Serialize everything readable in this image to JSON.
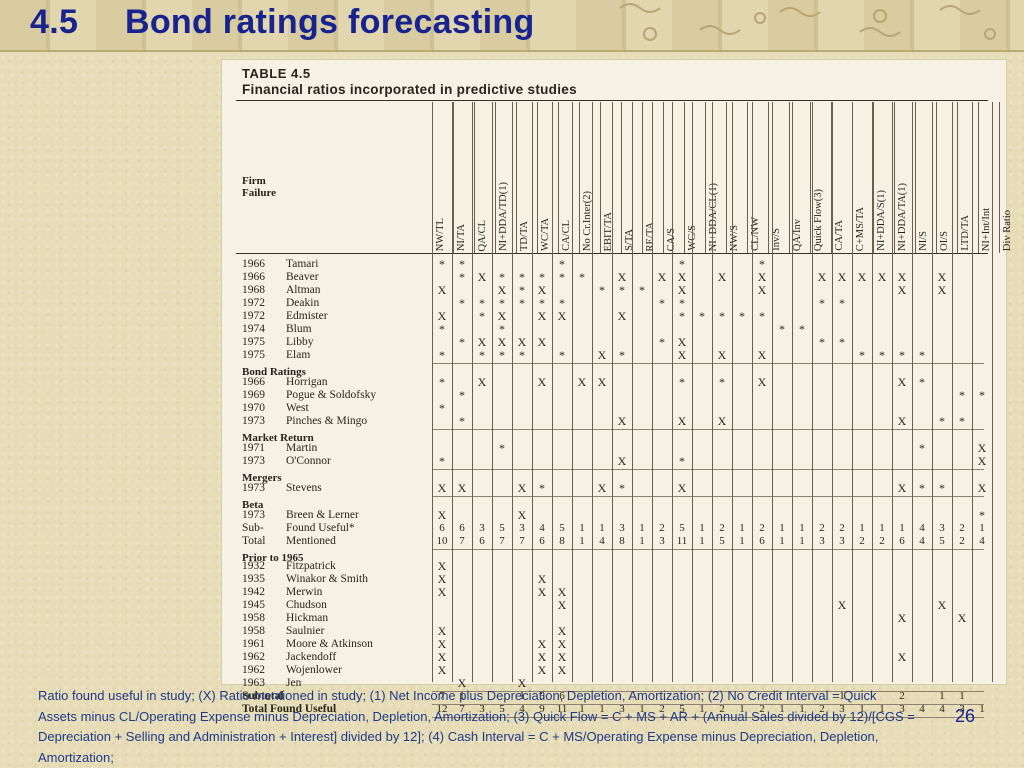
{
  "slide": {
    "number": "4.5",
    "title": "Bond ratings forecasting",
    "page": "26",
    "footnote": "Ratio found useful in study; (X) Ratio mentioned in study; (1) Net Income plus Depreciation, Depletion, Amortization; (2) No Credit Interval = Quick Assets minus CL/Operating Expense minus Depreciation, Depletion, Amortization; (3) Quick Flow = C + MS + AR + (Annual Sales divided by 12)/[CGS = Depreciation + Selling and Administration + Interest] divided by 12]; (4) Cash Interval = C + MS/Operating Expense minus Depreciation, Depletion, Amortization;"
  },
  "table": {
    "caption": "TABLE 4.5",
    "subtitle": "Financial ratios incorporated in predictive studies",
    "firm_header": "Firm\nFailure",
    "columns": [
      "NW/TL",
      "NI/TA",
      "QA/CL",
      "NI+DDA/TD(1)",
      "TD/TA",
      "WC/TA",
      "CA/CL",
      "No Cr.Inter(2)",
      "EBIT/TA",
      "S/TA",
      "RE/TA",
      "CA/S",
      "WC/S",
      "NI+DDA/CL(1)",
      "NW/S",
      "CL/NW",
      "Inv/S",
      "QA/Inv",
      "Quick Flow(3)",
      "CA/TA",
      "C+MS/TA",
      "NI+DDA/S(1)",
      "NI+DDA/TA(1)",
      "NI/S",
      "OI/S",
      "LTD/TA",
      "NI+Int/Int",
      "Div Ratio"
    ],
    "rows": [
      {
        "year": "1966",
        "name": "Tamari",
        "marks": [
          "*",
          "*",
          "",
          "",
          "",
          "",
          "*",
          "",
          "",
          "",
          "",
          "",
          "*",
          "",
          "",
          "",
          "*",
          "",
          "",
          "",
          "",
          "",
          "",
          "",
          "",
          "",
          "",
          ""
        ]
      },
      {
        "year": "1966",
        "name": "Beaver",
        "marks": [
          "",
          "*",
          "X",
          "*",
          "*",
          "*",
          "*",
          "*",
          "",
          "X",
          "",
          "X",
          "X",
          "",
          "X",
          "",
          "X",
          "",
          "",
          "X",
          "X",
          "X",
          "X",
          "X",
          "",
          "X",
          "",
          ""
        ]
      },
      {
        "year": "1968",
        "name": "Altman",
        "marks": [
          "X",
          "",
          "",
          "X",
          "*",
          "X",
          "",
          "",
          "*",
          "*",
          "*",
          "",
          "X",
          "",
          "",
          "",
          "X",
          "",
          "",
          "",
          "",
          "",
          "",
          "X",
          "",
          "X",
          "",
          ""
        ]
      },
      {
        "year": "1972",
        "name": "Deakin",
        "marks": [
          "",
          "*",
          "*",
          "*",
          "*",
          "*",
          "*",
          "",
          "",
          "",
          "",
          "*",
          "*",
          "",
          "",
          "",
          "",
          "",
          "",
          "*",
          "*",
          "",
          "",
          "",
          "",
          "",
          "",
          ""
        ]
      },
      {
        "year": "1972",
        "name": "Edmister",
        "marks": [
          "X",
          "",
          "*",
          "X",
          "",
          "X",
          "X",
          "",
          "",
          "X",
          "",
          "",
          "*",
          "*",
          "*",
          "*",
          "*",
          "",
          "",
          "",
          "",
          "",
          "",
          "",
          "",
          "",
          "",
          ""
        ]
      },
      {
        "year": "1974",
        "name": "Blum",
        "marks": [
          "*",
          "",
          "",
          "*",
          "",
          "",
          "",
          "",
          "",
          "",
          "",
          "",
          "",
          "",
          "",
          "",
          "",
          "*",
          "*",
          "",
          "",
          "",
          "",
          "",
          "",
          "",
          "",
          ""
        ]
      },
      {
        "year": "1975",
        "name": "Libby",
        "marks": [
          "",
          "*",
          "X",
          "X",
          "X",
          "X",
          "",
          "",
          "",
          "",
          "",
          "*",
          "X",
          "",
          "",
          "",
          "",
          "",
          "",
          "*",
          "*",
          "",
          "",
          "",
          "",
          "",
          "",
          ""
        ]
      },
      {
        "year": "1975",
        "name": "Elam",
        "marks": [
          "*",
          "",
          "*",
          "*",
          "*",
          "",
          "*",
          "",
          "X",
          "*",
          "",
          "",
          "X",
          "",
          "X",
          "",
          "X",
          "",
          "",
          "",
          "",
          "*",
          "*",
          "*",
          "*",
          "",
          "",
          ""
        ]
      }
    ],
    "bond_section": "Bond Ratings",
    "bond_rows": [
      {
        "year": "1966",
        "name": "Horrigan",
        "marks": [
          "*",
          "",
          "X",
          "",
          "",
          "X",
          "",
          "X",
          "X",
          "",
          "",
          "",
          "*",
          "",
          "*",
          "",
          "X",
          "",
          "",
          "",
          "",
          "",
          "",
          "X",
          "*",
          "",
          "",
          ""
        ]
      },
      {
        "year": "1969",
        "name": "Pogue & Soldofsky",
        "marks": [
          "",
          "*",
          "",
          "",
          "",
          "",
          "",
          "",
          "",
          "",
          "",
          "",
          "",
          "",
          "",
          "",
          "",
          "",
          "",
          "",
          "",
          "",
          "",
          "",
          "",
          "",
          "*",
          "*"
        ]
      },
      {
        "year": "1970",
        "name": "West",
        "marks": [
          "*",
          "",
          "",
          "",
          "",
          "",
          "",
          "",
          "",
          "",
          "",
          "",
          "",
          "",
          "",
          "",
          "",
          "",
          "",
          "",
          "",
          "",
          "",
          "",
          "",
          "",
          "",
          ""
        ]
      },
      {
        "year": "1973",
        "name": "Pinches & Mingo",
        "marks": [
          "",
          "*",
          "",
          "",
          "",
          "",
          "",
          "",
          "",
          "X",
          "",
          "",
          "X",
          "",
          "X",
          "",
          "",
          "",
          "",
          "",
          "",
          "",
          "",
          "X",
          "",
          "*",
          "*",
          ""
        ]
      }
    ],
    "market_section": "Market Return",
    "market_rows": [
      {
        "year": "1971",
        "name": "Martin",
        "marks": [
          "",
          "",
          "",
          "*",
          "",
          "",
          "",
          "",
          "",
          "",
          "",
          "",
          "",
          "",
          "",
          "",
          "",
          "",
          "",
          "",
          "",
          "",
          "",
          "",
          "*",
          "",
          "",
          "X"
        ]
      },
      {
        "year": "1973",
        "name": "O'Connor",
        "marks": [
          "*",
          "",
          "",
          "",
          "",
          "",
          "",
          "",
          "",
          "X",
          "",
          "",
          "*",
          "",
          "",
          "",
          "",
          "",
          "",
          "",
          "",
          "",
          "",
          "",
          "",
          "",
          "",
          "X"
        ]
      }
    ],
    "mergers_section": "Mergers",
    "mergers_rows": [
      {
        "year": "1973",
        "name": "Stevens",
        "marks": [
          "X",
          "X",
          "",
          "",
          "X",
          "*",
          "",
          "",
          "X",
          "*",
          "",
          "",
          "X",
          "",
          "",
          "",
          "",
          "",
          "",
          "",
          "",
          "",
          "",
          "X",
          "*",
          "*",
          "",
          "X"
        ]
      }
    ],
    "beta_section": "Beta",
    "beta_rows": [
      {
        "year": "1973",
        "name": "Breen & Lerner",
        "marks": [
          "X",
          "",
          "",
          "",
          "X",
          "",
          "",
          "",
          "",
          "",
          "",
          "",
          "",
          "",
          "",
          "",
          "",
          "",
          "",
          "",
          "",
          "",
          "",
          "",
          "",
          "",
          "",
          "*"
        ]
      }
    ],
    "subtotals": [
      {
        "label1": "Sub-",
        "label2": "Found Useful*",
        "values": [
          "6",
          "6",
          "3",
          "5",
          "3",
          "4",
          "5",
          "1",
          "1",
          "3",
          "1",
          "2",
          "5",
          "1",
          "2",
          "1",
          "2",
          "1",
          "1",
          "2",
          "2",
          "1",
          "1",
          "1",
          "4",
          "3",
          "2",
          "1"
        ]
      },
      {
        "label1": "Total",
        "label2": "Mentioned",
        "values": [
          "10",
          "7",
          "6",
          "7",
          "7",
          "6",
          "8",
          "1",
          "4",
          "8",
          "1",
          "3",
          "11",
          "1",
          "5",
          "1",
          "6",
          "1",
          "1",
          "3",
          "3",
          "2",
          "2",
          "6",
          "4",
          "5",
          "2",
          "4"
        ]
      }
    ],
    "prior_section": "Prior to 1965",
    "prior_rows": [
      {
        "year": "1932",
        "name": "Fitzpatrick",
        "marks": [
          "X",
          "",
          "",
          "",
          "",
          "",
          "",
          "",
          "",
          "",
          "",
          "",
          "",
          "",
          "",
          "",
          "",
          "",
          "",
          "",
          "",
          "",
          "",
          "",
          "",
          "",
          "",
          ""
        ]
      },
      {
        "year": "1935",
        "name": "Winakor & Smith",
        "marks": [
          "X",
          "",
          "",
          "",
          "",
          "X",
          "",
          "",
          "",
          "",
          "",
          "",
          "",
          "",
          "",
          "",
          "",
          "",
          "",
          "",
          "",
          "",
          "",
          "",
          "",
          "",
          "",
          ""
        ]
      },
      {
        "year": "1942",
        "name": "Merwin",
        "marks": [
          "X",
          "",
          "",
          "",
          "",
          "X",
          "X",
          "",
          "",
          "",
          "",
          "",
          "",
          "",
          "",
          "",
          "",
          "",
          "",
          "",
          "",
          "",
          "",
          "",
          "",
          "",
          "",
          ""
        ]
      },
      {
        "year": "1945",
        "name": "Chudson",
        "marks": [
          "",
          "",
          "",
          "",
          "",
          "",
          "X",
          "",
          "",
          "",
          "",
          "",
          "",
          "",
          "",
          "",
          "",
          "",
          "",
          "",
          "X",
          "",
          "",
          "",
          "",
          "X",
          "",
          ""
        ]
      },
      {
        "year": "1958",
        "name": "Hickman",
        "marks": [
          "",
          "",
          "",
          "",
          "",
          "",
          "",
          "",
          "",
          "",
          "",
          "",
          "",
          "",
          "",
          "",
          "",
          "",
          "",
          "",
          "",
          "",
          "",
          "X",
          "",
          "",
          "X",
          ""
        ]
      },
      {
        "year": "1958",
        "name": "Saulnier",
        "marks": [
          "X",
          "",
          "",
          "",
          "",
          "",
          "X",
          "",
          "",
          "",
          "",
          "",
          "",
          "",
          "",
          "",
          "",
          "",
          "",
          "",
          "",
          "",
          "",
          "",
          "",
          "",
          "",
          ""
        ]
      },
      {
        "year": "1961",
        "name": "Moore & Atkinson",
        "marks": [
          "X",
          "",
          "",
          "",
          "",
          "X",
          "X",
          "",
          "",
          "",
          "",
          "",
          "",
          "",
          "",
          "",
          "",
          "",
          "",
          "",
          "",
          "",
          "",
          "",
          "",
          "",
          "",
          ""
        ]
      },
      {
        "year": "1962",
        "name": "Jackendoff",
        "marks": [
          "X",
          "",
          "",
          "",
          "",
          "X",
          "X",
          "",
          "",
          "",
          "",
          "",
          "",
          "",
          "",
          "",
          "",
          "",
          "",
          "",
          "",
          "",
          "",
          "X",
          "",
          "",
          "",
          ""
        ]
      },
      {
        "year": "1962",
        "name": "Wojenlower",
        "marks": [
          "X",
          "",
          "",
          "",
          "",
          "X",
          "X",
          "",
          "",
          "",
          "",
          "",
          "",
          "",
          "",
          "",
          "",
          "",
          "",
          "",
          "",
          "",
          "",
          "",
          "",
          "",
          "",
          ""
        ]
      },
      {
        "year": "1963",
        "name": "Jen",
        "marks": [
          "",
          "X",
          "",
          "",
          "X",
          "",
          "",
          "",
          "",
          "",
          "",
          "",
          "",
          "",
          "",
          "",
          "",
          "",
          "",
          "",
          "",
          "",
          "",
          "",
          "",
          "",
          "",
          ""
        ]
      }
    ],
    "totals": [
      {
        "label": "Subtotal",
        "values": [
          "7",
          "1",
          "",
          "",
          "1",
          "5",
          "6",
          "",
          "",
          "",
          "",
          "",
          "",
          "",
          "",
          "",
          "",
          "",
          "",
          "",
          "1",
          "",
          "",
          "2",
          "",
          "1",
          "1",
          ""
        ]
      },
      {
        "label": "Total Found Useful",
        "values": [
          "12",
          "7",
          "3",
          "5",
          "4",
          "9",
          "11",
          "1",
          "1",
          "3",
          "1",
          "2",
          "5",
          "1",
          "2",
          "1",
          "2",
          "1",
          "1",
          "2",
          "3",
          "1",
          "1",
          "3",
          "4",
          "4",
          "3",
          "1"
        ]
      }
    ]
  }
}
